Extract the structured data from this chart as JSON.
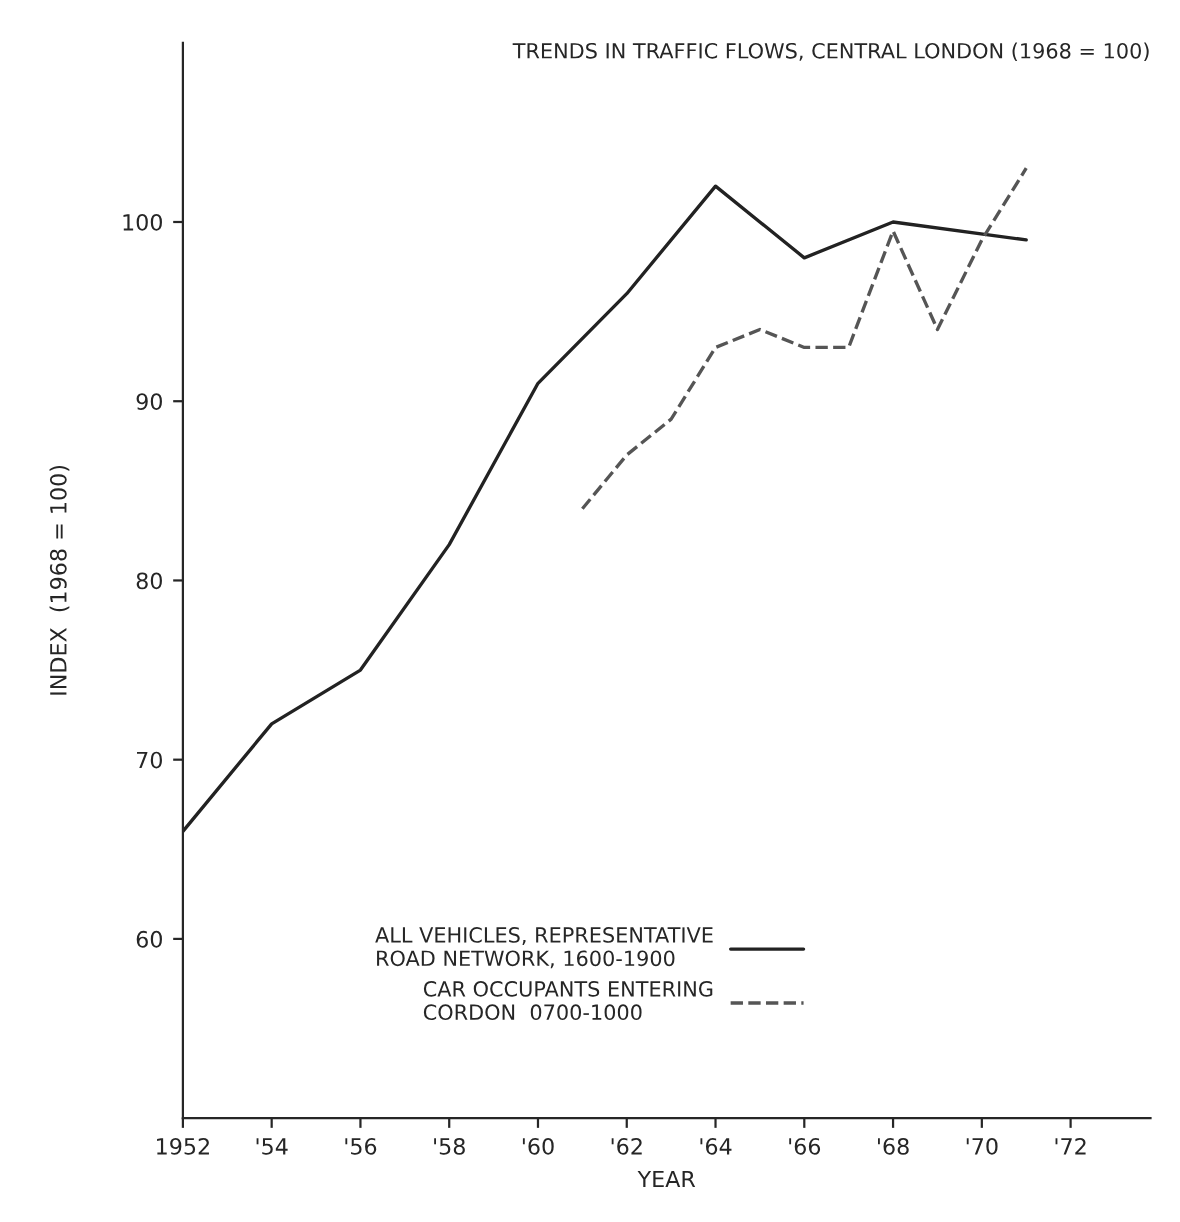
{
  "chart_data": {
    "type": "line",
    "title": "TRENDS IN TRAFFIC FLOWS, CENTRAL LONDON (1968 = 100)",
    "xlabel": "YEAR",
    "ylabel": "INDEX  (1968 = 100)",
    "series": [
      {
        "name": "ALL VEHICLES, REPRESENTATIVE\nROAD NETWORK, 1600-1900",
        "color": "#222222",
        "line_style": "solid",
        "x": [
          1952,
          1954,
          1956,
          1958,
          1960,
          1962,
          1964,
          1966,
          1968,
          1971
        ],
        "values": [
          66,
          72,
          75,
          82,
          91,
          96,
          102,
          98,
          100,
          99
        ]
      },
      {
        "name": "CAR OCCUPANTS ENTERING\nCORDON  0700-1000",
        "color": "#555555",
        "line_style": "dashed",
        "x": [
          1961,
          1962,
          1963,
          1964,
          1965,
          1966,
          1967,
          1968,
          1969,
          1970,
          1971
        ],
        "values": [
          84,
          87,
          89,
          93,
          94,
          93,
          93,
          99.5,
          94,
          99,
          103
        ]
      }
    ],
    "xlim": [
      1952,
      1973.8
    ],
    "ylim": [
      50,
      110
    ],
    "xticks": [
      {
        "value": 1952,
        "label": "1952"
      },
      {
        "value": 1954,
        "label": "'54"
      },
      {
        "value": 1956,
        "label": "'56"
      },
      {
        "value": 1958,
        "label": "'58"
      },
      {
        "value": 1960,
        "label": "'60"
      },
      {
        "value": 1962,
        "label": "'62"
      },
      {
        "value": 1964,
        "label": "'64"
      },
      {
        "value": 1966,
        "label": "'66"
      },
      {
        "value": 1968,
        "label": "'68"
      },
      {
        "value": 1970,
        "label": "'70"
      },
      {
        "value": 1972,
        "label": "'72"
      }
    ],
    "yticks": [
      60,
      70,
      80,
      90,
      100
    ],
    "grid": false,
    "legend": "bottom"
  }
}
